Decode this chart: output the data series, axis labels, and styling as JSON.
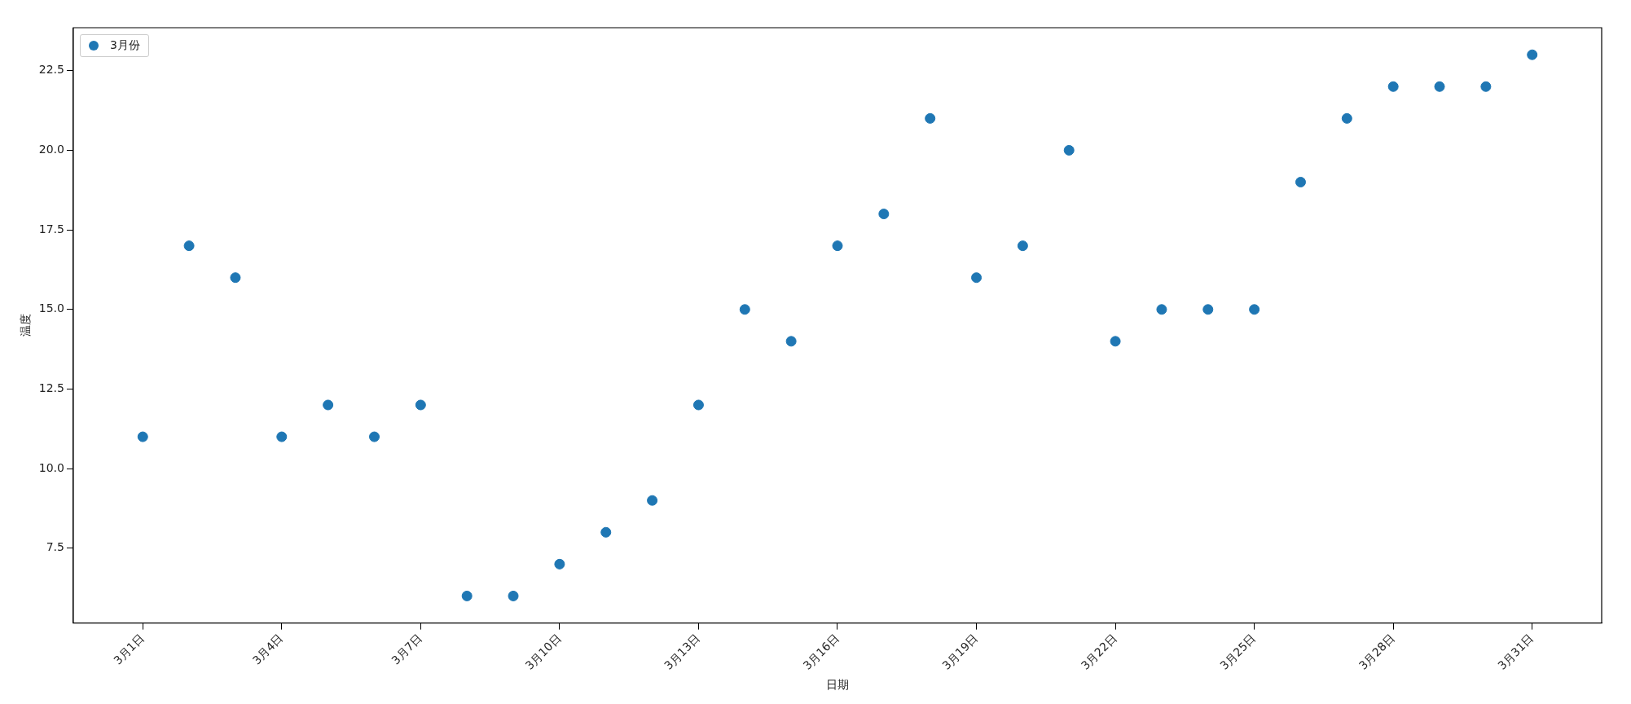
{
  "chart_data": {
    "type": "scatter",
    "xlabel": "日期",
    "ylabel": "温度",
    "categories": [
      "3月1日",
      null,
      null,
      "3月4日",
      null,
      null,
      "3月7日",
      null,
      null,
      "3月10日",
      null,
      null,
      "3月13日",
      null,
      null,
      "3月16日",
      null,
      null,
      "3月19日",
      null,
      null,
      "3月22日",
      null,
      null,
      "3月25日",
      null,
      null,
      "3月28日",
      null,
      null,
      "3月31日"
    ],
    "series": [
      {
        "name": "3月份",
        "color": "#1f77b4",
        "values": [
          11,
          17,
          16,
          11,
          12,
          11,
          12,
          6,
          6,
          7,
          8,
          9,
          12,
          15,
          14,
          17,
          18,
          21,
          16,
          17,
          20,
          14,
          15,
          15,
          15,
          19,
          21,
          22,
          22,
          22,
          23
        ]
      }
    ],
    "ylim": [
      5.15,
      23.85
    ],
    "yticks": [
      {
        "value": 7.5,
        "label": "7.5"
      },
      {
        "value": 10,
        "label": "10.0"
      },
      {
        "value": 12.5,
        "label": "12.5"
      },
      {
        "value": 15,
        "label": "15.0"
      },
      {
        "value": 17.5,
        "label": "17.5"
      },
      {
        "value": 20,
        "label": "20.0"
      },
      {
        "value": 22.5,
        "label": "22.5"
      }
    ],
    "grid": false,
    "legend": "top left",
    "marker": "circle"
  }
}
